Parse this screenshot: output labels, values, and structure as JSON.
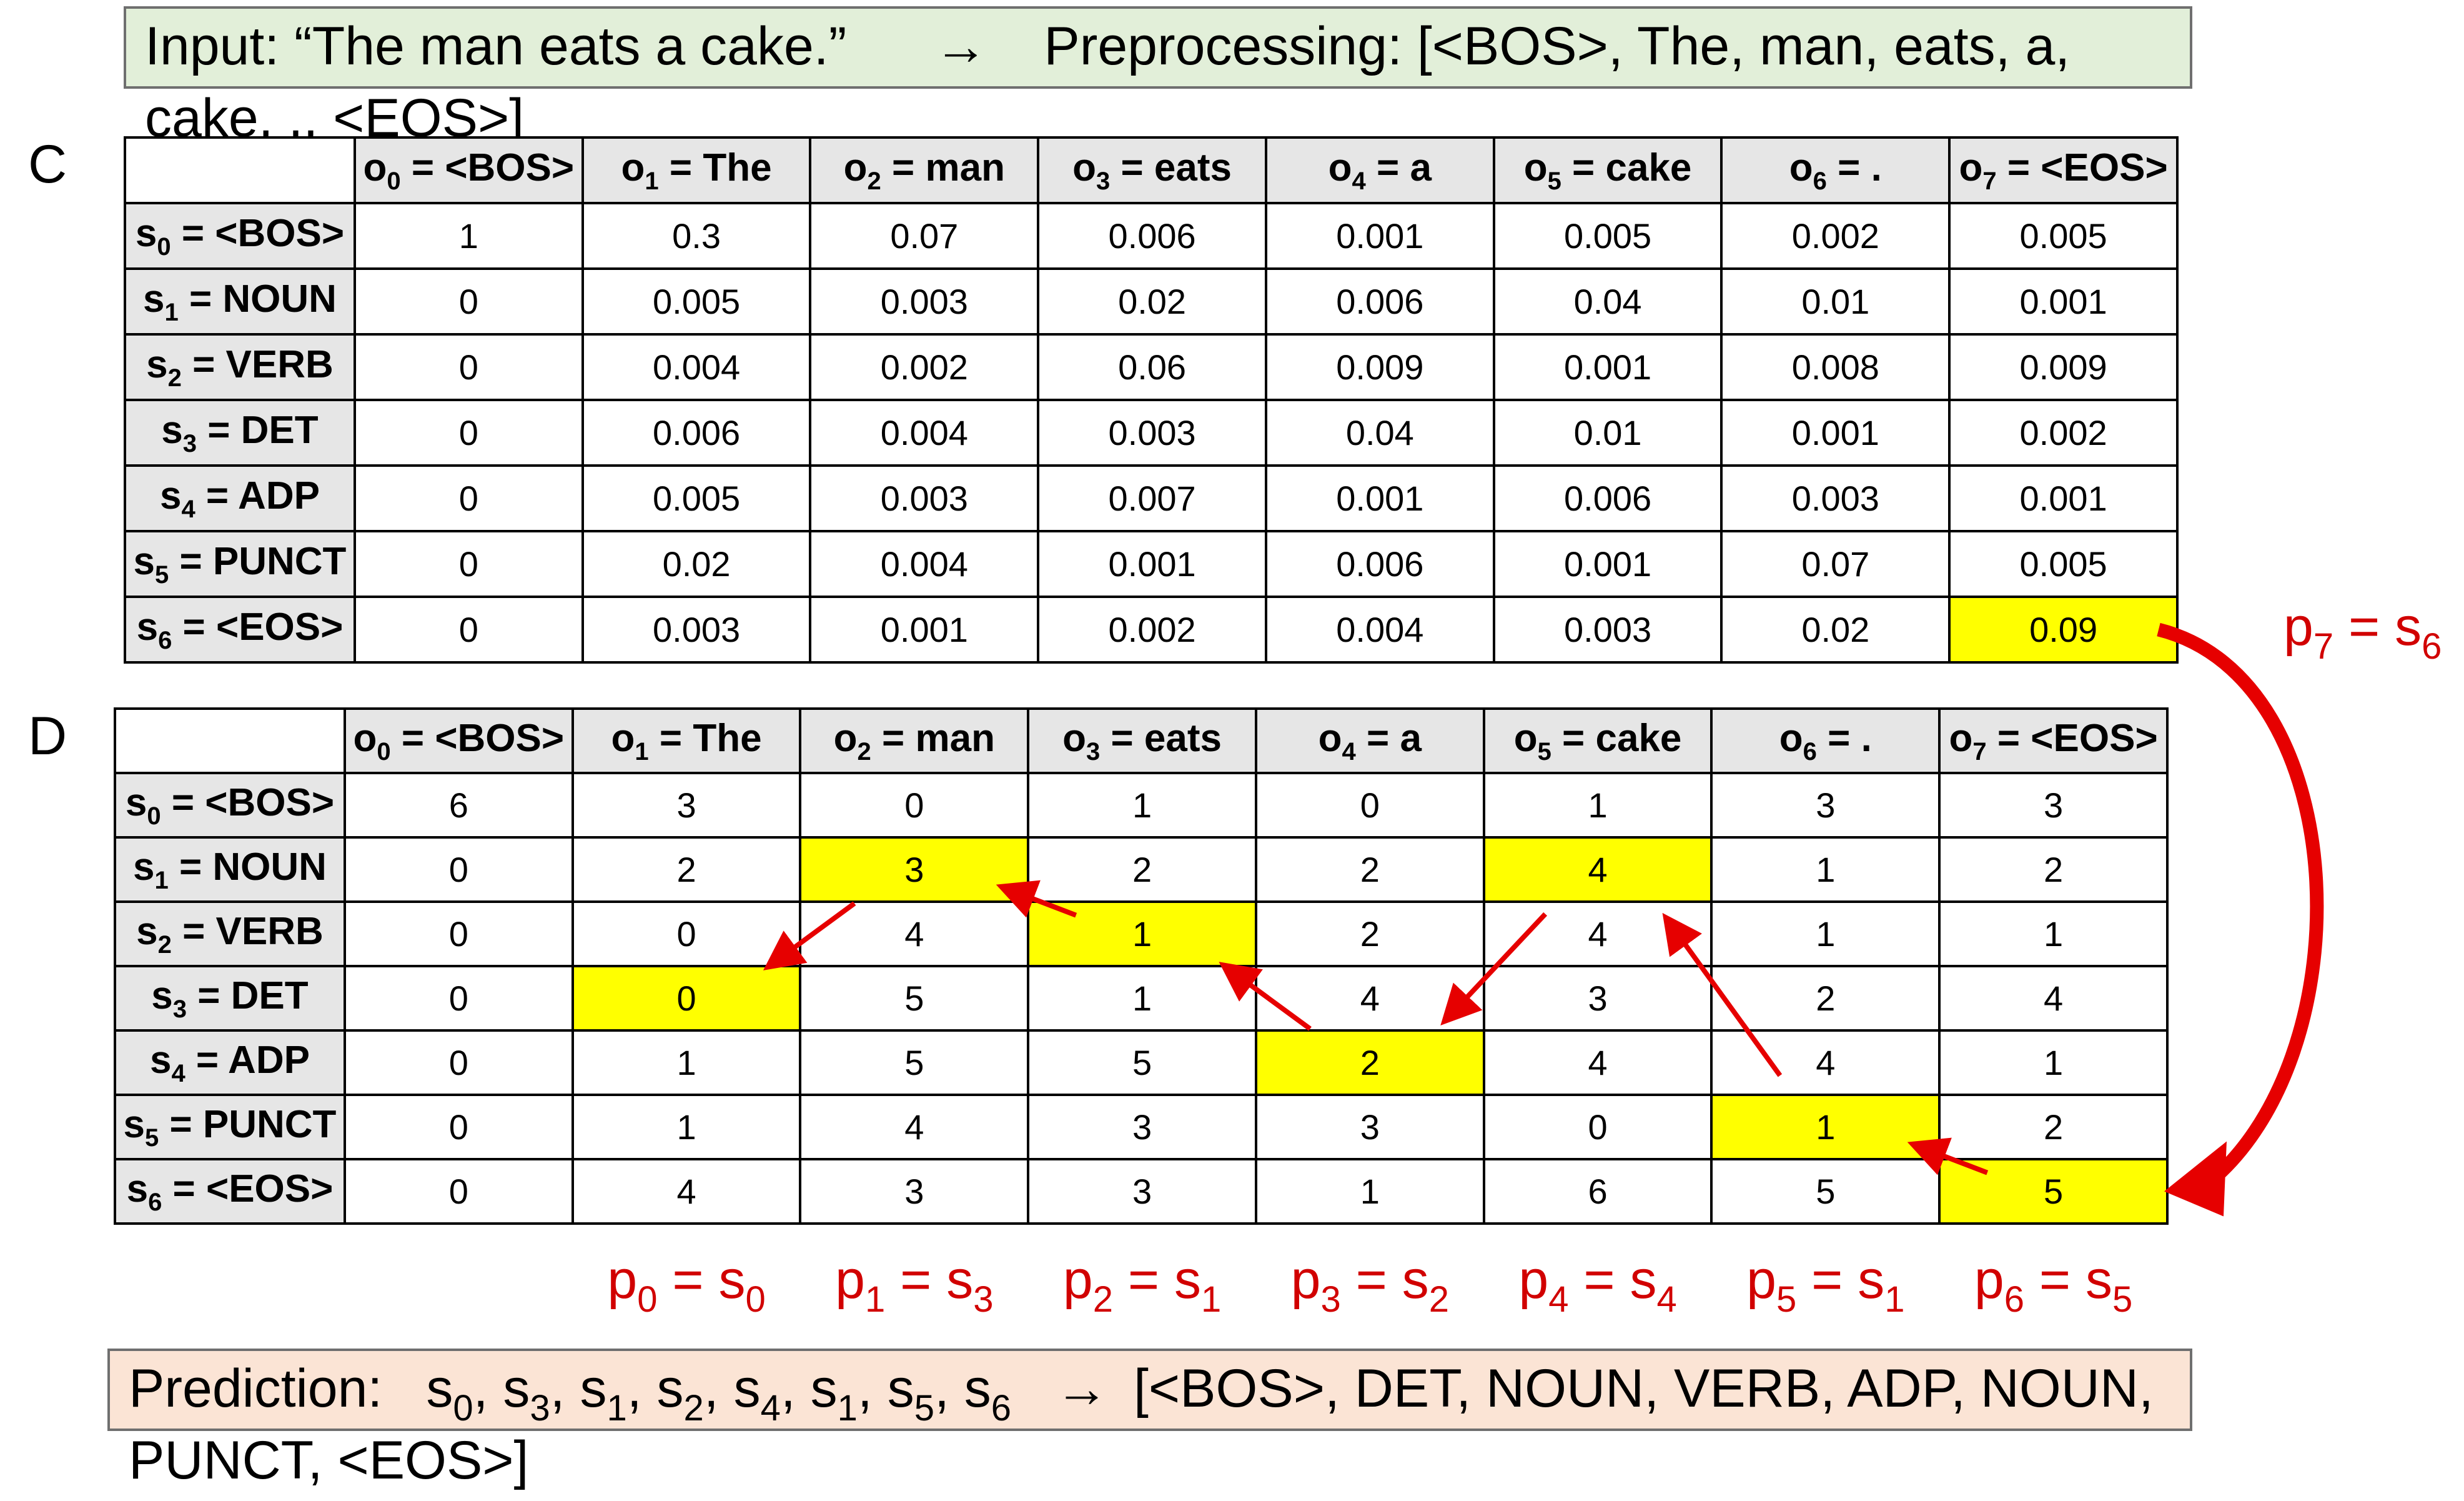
{
  "input_box": {
    "text_line1_a": "Input: “The man eats a cake.”",
    "arrow": "→",
    "text_line1_b": "Preprocessing: [<BOS>, The, man, eats, a,",
    "text_line2": "cake, ., <EOS>]"
  },
  "panel_c_label": "C",
  "panel_d_label": "D",
  "columns": [
    {
      "var": "o",
      "sub": "0",
      "rest": " = <BOS>"
    },
    {
      "var": "o",
      "sub": "1",
      "rest": " = The"
    },
    {
      "var": "o",
      "sub": "2",
      "rest": " = man"
    },
    {
      "var": "o",
      "sub": "3",
      "rest": " = eats"
    },
    {
      "var": "o",
      "sub": "4",
      "rest": " = a"
    },
    {
      "var": "o",
      "sub": "5",
      "rest": " = cake"
    },
    {
      "var": "o",
      "sub": "6",
      "rest": " = ."
    },
    {
      "var": "o",
      "sub": "7",
      "rest": " = <EOS>"
    }
  ],
  "rows": [
    {
      "var": "s",
      "sub": "0",
      "rest": " = <BOS>"
    },
    {
      "var": "s",
      "sub": "1",
      "rest": " = NOUN"
    },
    {
      "var": "s",
      "sub": "2",
      "rest": " = VERB"
    },
    {
      "var": "s",
      "sub": "3",
      "rest": " = DET"
    },
    {
      "var": "s",
      "sub": "4",
      "rest": " = ADP"
    },
    {
      "var": "s",
      "sub": "5",
      "rest": " = PUNCT"
    },
    {
      "var": "s",
      "sub": "6",
      "rest": " = <EOS>"
    }
  ],
  "table_c": {
    "values": [
      [
        "1",
        "0.3",
        "0.07",
        "0.006",
        "0.001",
        "0.005",
        "0.002",
        "0.005"
      ],
      [
        "0",
        "0.005",
        "0.003",
        "0.02",
        "0.006",
        "0.04",
        "0.01",
        "0.001"
      ],
      [
        "0",
        "0.004",
        "0.002",
        "0.06",
        "0.009",
        "0.001",
        "0.008",
        "0.009"
      ],
      [
        "0",
        "0.006",
        "0.004",
        "0.003",
        "0.04",
        "0.01",
        "0.001",
        "0.002"
      ],
      [
        "0",
        "0.005",
        "0.003",
        "0.007",
        "0.001",
        "0.006",
        "0.003",
        "0.001"
      ],
      [
        "0",
        "0.02",
        "0.004",
        "0.001",
        "0.006",
        "0.001",
        "0.07",
        "0.005"
      ],
      [
        "0",
        "0.003",
        "0.001",
        "0.002",
        "0.004",
        "0.003",
        "0.02",
        "0.09"
      ]
    ],
    "highlight": [
      [
        6,
        7
      ]
    ]
  },
  "table_d": {
    "values": [
      [
        "6",
        "3",
        "0",
        "1",
        "0",
        "1",
        "3",
        "3"
      ],
      [
        "0",
        "2",
        "3",
        "2",
        "2",
        "4",
        "1",
        "2"
      ],
      [
        "0",
        "0",
        "4",
        "1",
        "2",
        "4",
        "1",
        "1"
      ],
      [
        "0",
        "0",
        "5",
        "1",
        "4",
        "3",
        "2",
        "4"
      ],
      [
        "0",
        "1",
        "5",
        "5",
        "2",
        "4",
        "4",
        "1"
      ],
      [
        "0",
        "1",
        "4",
        "3",
        "3",
        "0",
        "1",
        "2"
      ],
      [
        "0",
        "4",
        "3",
        "3",
        "1",
        "6",
        "5",
        "5"
      ]
    ],
    "highlight": [
      [
        3,
        1
      ],
      [
        1,
        2
      ],
      [
        2,
        3
      ],
      [
        4,
        4
      ],
      [
        1,
        5
      ],
      [
        5,
        6
      ],
      [
        6,
        7
      ]
    ]
  },
  "p7_label": {
    "var": "p",
    "sub": "7",
    "eq": " = ",
    "svar": "s",
    "ssub": "6"
  },
  "path_labels": [
    {
      "var": "p",
      "sub": "0",
      "eq": " = ",
      "svar": "s",
      "ssub": "0"
    },
    {
      "var": "p",
      "sub": "1",
      "eq": " = ",
      "svar": "s",
      "ssub": "3"
    },
    {
      "var": "p",
      "sub": "2",
      "eq": " = ",
      "svar": "s",
      "ssub": "1"
    },
    {
      "var": "p",
      "sub": "3",
      "eq": " = ",
      "svar": "s",
      "ssub": "2"
    },
    {
      "var": "p",
      "sub": "4",
      "eq": " = ",
      "svar": "s",
      "ssub": "4"
    },
    {
      "var": "p",
      "sub": "5",
      "eq": " = ",
      "svar": "s",
      "ssub": "1"
    },
    {
      "var": "p",
      "sub": "6",
      "eq": " = ",
      "svar": "s",
      "ssub": "5"
    }
  ],
  "prediction_box": {
    "prefix": "Prediction:",
    "sequence": [
      {
        "var": "s",
        "sub": "0"
      },
      {
        "var": "s",
        "sub": "3"
      },
      {
        "var": "s",
        "sub": "1"
      },
      {
        "var": "s",
        "sub": "2"
      },
      {
        "var": "s",
        "sub": "4"
      },
      {
        "var": "s",
        "sub": "1"
      },
      {
        "var": "s",
        "sub": "5"
      },
      {
        "var": "s",
        "sub": "6"
      }
    ],
    "arrow": "→",
    "result_line1": "[<BOS>, DET, NOUN, VERB, ADP, NOUN,",
    "result_line2": "PUNCT, <EOS>]"
  },
  "colors": {
    "highlight": "#ffff00",
    "arrow": "#e60000",
    "label_red": "#d10000"
  }
}
